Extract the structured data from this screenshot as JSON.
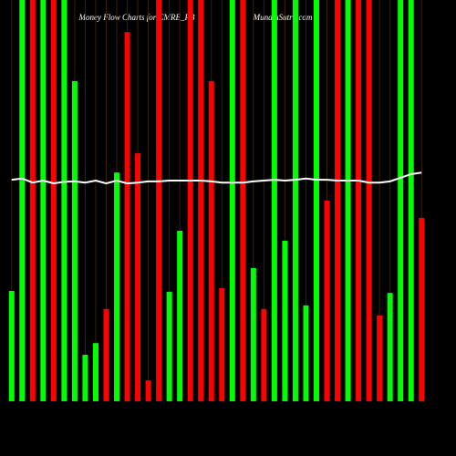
{
  "chart_data": {
    "type": "bar",
    "title": "Money Flow Charts for CMRE_PB",
    "watermark": "MunafaSutra.com",
    "ylim": [
      0,
      100
    ],
    "series": [
      {
        "name": "money flow",
        "colors": [
          "#00ff00",
          "#00ff00",
          "#ff0000",
          "#00ff00",
          "#ff0000",
          "#00ff00",
          "#00ff00",
          "#00ff00",
          "#00ff00",
          "#ff0000",
          "#00ff00",
          "#ff0000",
          "#ff0000",
          "#ff0000",
          "#ff0000",
          "#00ff00",
          "#00ff00",
          "#ff0000",
          "#ff0000",
          "#ff0000",
          "#ff0000",
          "#00ff00",
          "#ff0000",
          "#00ff00",
          "#ff0000",
          "#00ff00",
          "#00ff00",
          "#00ff00",
          "#00ff00",
          "#00ff00",
          "#ff0000",
          "#ff0000",
          "#00ff00",
          "#ff0000",
          "#ff0000",
          "#ff0000",
          "#00ff00",
          "#00ff00",
          "#00ff00",
          "#ff0000"
        ],
        "values": [
          27.5,
          100,
          100,
          100,
          100,
          100,
          79.8,
          11.6,
          14.5,
          23,
          57,
          92,
          61.8,
          5.2,
          100,
          27.3,
          42.5,
          100,
          100,
          79.8,
          28.2,
          100,
          100,
          33.2,
          23,
          100,
          40,
          100,
          23.9,
          100,
          50,
          100,
          100,
          100,
          100,
          21.4,
          27,
          100,
          100,
          45.7
        ]
      },
      {
        "name": "trend",
        "color": "#ffffff",
        "values": [
          55.2,
          55.5,
          54.5,
          55,
          54.3,
          54.7,
          54.8,
          54.5,
          55,
          54.3,
          55,
          54.3,
          54.5,
          54.8,
          54.8,
          55,
          55,
          55,
          55,
          54.8,
          54.5,
          54.5,
          54.5,
          54.8,
          55,
          55.2,
          55,
          55.2,
          55.5,
          55.2,
          55.2,
          55,
          55,
          55,
          54.5,
          54.5,
          54.8,
          55.7,
          56.6,
          57
        ]
      }
    ]
  }
}
